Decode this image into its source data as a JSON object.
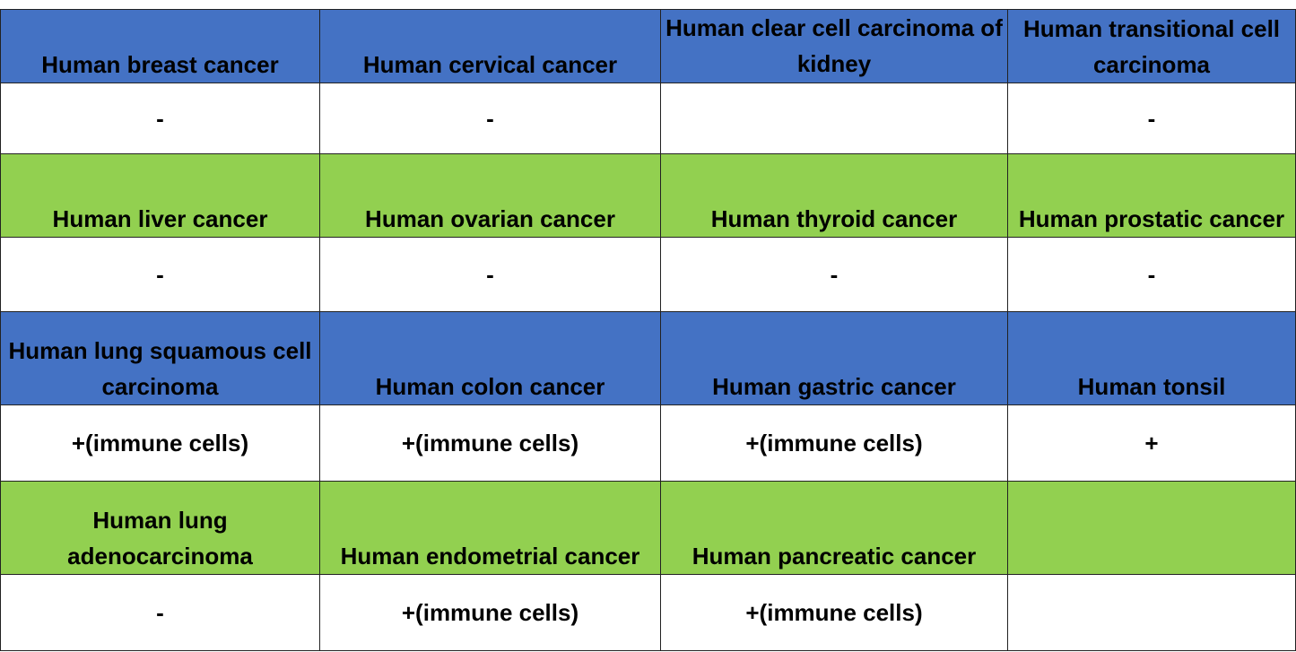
{
  "table": {
    "rows": [
      [
        "Human breast cancer",
        "Human cervical cancer",
        "Human clear cell carcinoma of kidney",
        "Human transitional cell carcinoma"
      ],
      [
        "-",
        "-",
        null,
        "-"
      ],
      [
        "Human liver cancer",
        "Human ovarian cancer",
        "Human thyroid cancer",
        "Human prostatic cancer"
      ],
      [
        "-",
        "-",
        "-",
        "-"
      ],
      [
        "Human lung squamous cell carcinoma",
        "Human colon cancer",
        "Human gastric cancer",
        "Human tonsil"
      ],
      [
        "+(immune cells)",
        "+(immune cells)",
        "+(immune cells)",
        "+"
      ],
      [
        "Human lung adenocarcinoma",
        "Human endometrial cancer",
        "Human pancreatic cancer",
        null
      ],
      [
        "-",
        "+(immune cells)",
        "+(immune cells)",
        null
      ]
    ]
  }
}
